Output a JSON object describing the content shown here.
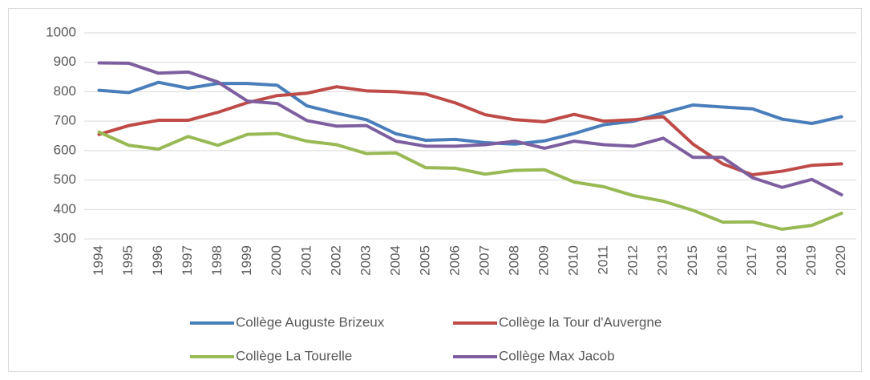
{
  "chart_data": {
    "type": "line",
    "categories": [
      "1994",
      "1995",
      "1996",
      "1997",
      "1998",
      "1999",
      "2000",
      "2001",
      "2002",
      "2003",
      "2004",
      "2005",
      "2006",
      "2007",
      "2008",
      "2009",
      "2010",
      "2011",
      "2012",
      "2013",
      "2015",
      "2016",
      "2017",
      "2018",
      "2019",
      "2020"
    ],
    "series": [
      {
        "name": "Collège Auguste Brizeux",
        "color": "#4a7ebb",
        "values": [
          805,
          797,
          832,
          812,
          828,
          828,
          822,
          752,
          727,
          705,
          657,
          635,
          638,
          627,
          622,
          633,
          658,
          688,
          700,
          728,
          755,
          748,
          742,
          707,
          692,
          715
        ]
      },
      {
        "name": "Collège la Tour d'Auvergne",
        "color": "#be4b48",
        "values": [
          655,
          685,
          703,
          703,
          730,
          763,
          787,
          795,
          817,
          803,
          800,
          792,
          762,
          722,
          705,
          698,
          723,
          700,
          705,
          715,
          622,
          555,
          518,
          530,
          550,
          555
        ]
      },
      {
        "name": "Collège La Tourelle",
        "color": "#98b954",
        "values": [
          663,
          618,
          605,
          648,
          618,
          655,
          658,
          632,
          620,
          590,
          592,
          542,
          540,
          520,
          533,
          535,
          493,
          477,
          447,
          428,
          397,
          357,
          358,
          333,
          346,
          387
        ]
      },
      {
        "name": "Collège Max Jacob",
        "color": "#7d5fa0",
        "values": [
          898,
          897,
          863,
          867,
          833,
          768,
          760,
          702,
          683,
          685,
          632,
          615,
          615,
          620,
          632,
          608,
          632,
          620,
          615,
          642,
          577,
          577,
          508,
          475,
          502,
          450
        ]
      }
    ],
    "ylim": [
      300,
      1000
    ],
    "yticks": [
      300,
      400,
      500,
      600,
      700,
      800,
      900,
      1000
    ],
    "grid": true,
    "legend": "bottom"
  }
}
